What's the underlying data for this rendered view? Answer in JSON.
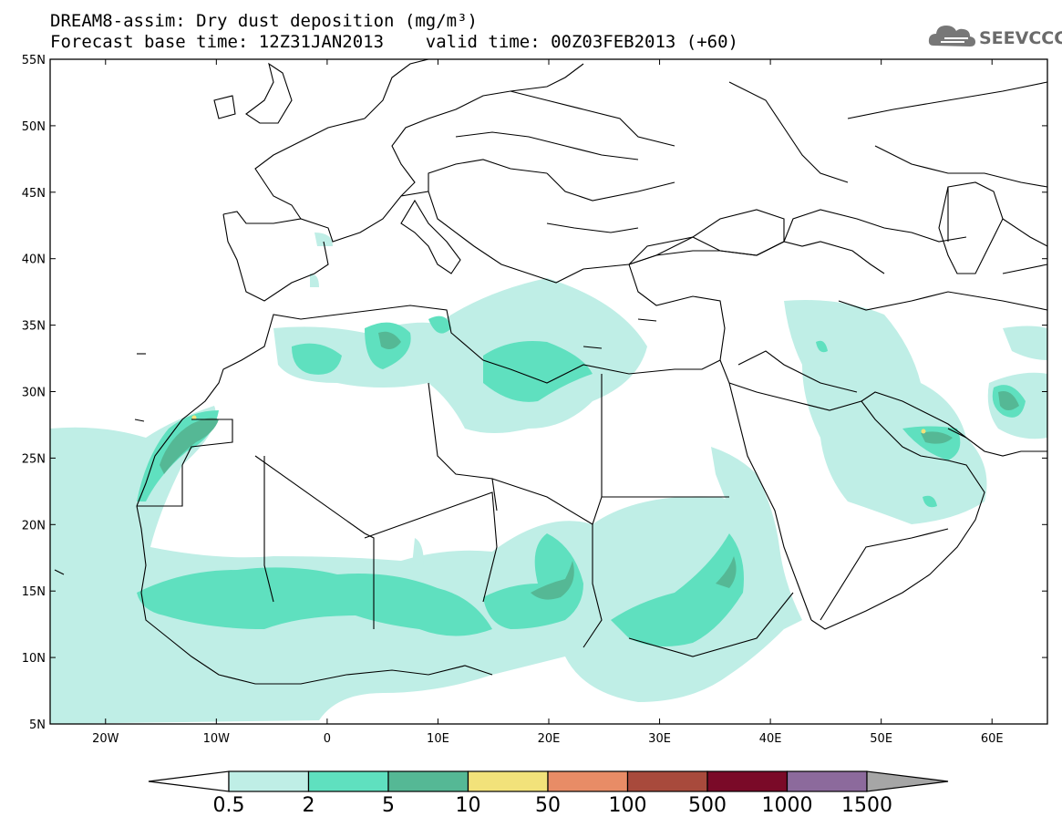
{
  "header": {
    "title_line1": "DREAM8-assim: Dry dust deposition (mg/m³)",
    "title_line2": "Forecast base time: 12Z31JAN2013    valid time: 00Z03FEB2013 (+60)",
    "logo_text": "SEEVCCC",
    "logo_icon": "cloud-logo-icon"
  },
  "map": {
    "projection": "lat-lon",
    "lon_range": [
      -25,
      65
    ],
    "lat_range": [
      5,
      55
    ],
    "lon_ticks": [
      {
        "value": -20,
        "label": "20W"
      },
      {
        "value": -10,
        "label": "10W"
      },
      {
        "value": 0,
        "label": "0"
      },
      {
        "value": 10,
        "label": "10E"
      },
      {
        "value": 20,
        "label": "20E"
      },
      {
        "value": 30,
        "label": "30E"
      },
      {
        "value": 40,
        "label": "40E"
      },
      {
        "value": 50,
        "label": "50E"
      },
      {
        "value": 60,
        "label": "60E"
      }
    ],
    "lat_ticks": [
      {
        "value": 55,
        "label": "55N"
      },
      {
        "value": 50,
        "label": "50N"
      },
      {
        "value": 45,
        "label": "45N"
      },
      {
        "value": 40,
        "label": "40N"
      },
      {
        "value": 35,
        "label": "35N"
      },
      {
        "value": 30,
        "label": "30N"
      },
      {
        "value": 25,
        "label": "25N"
      },
      {
        "value": 20,
        "label": "20N"
      },
      {
        "value": 15,
        "label": "15N"
      },
      {
        "value": 10,
        "label": "10N"
      },
      {
        "value": 5,
        "label": "5N"
      }
    ]
  },
  "colorbar": {
    "bins": [
      {
        "color": "#bfeee6",
        "label": "0.5"
      },
      {
        "color": "#5fe0bf",
        "label": "2"
      },
      {
        "color": "#55b895",
        "label": "5"
      },
      {
        "color": "#f2e27a",
        "label": "10"
      },
      {
        "color": "#e88c66",
        "label": "50"
      },
      {
        "color": "#a84a3c",
        "label": "100"
      },
      {
        "color": "#7a0a28",
        "label": "500"
      },
      {
        "color": "#8c6a9c",
        "label": "1000"
      },
      {
        "color": "#a6a6a6",
        "label": "1500"
      }
    ]
  },
  "colors": {
    "level1": "#bfeee6",
    "level2": "#5fe0bf",
    "level3": "#55b895",
    "level4": "#f2e27a"
  }
}
